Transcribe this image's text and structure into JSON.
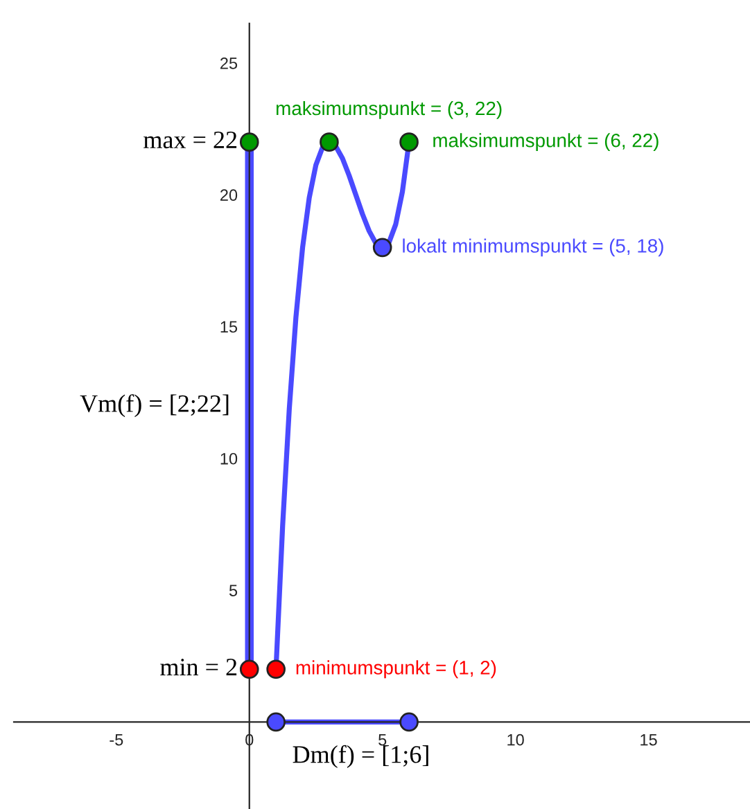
{
  "chart_data": {
    "type": "line",
    "x": [
      1,
      1.25,
      1.5,
      1.75,
      2,
      2.25,
      2.5,
      2.75,
      3,
      3.25,
      3.5,
      3.75,
      4,
      4.25,
      4.5,
      4.75,
      5,
      5.25,
      5.5,
      5.75,
      6
    ],
    "series": [
      {
        "color": "#4a4aff",
        "values": [
          2,
          7.45,
          11.88,
          15.36,
          18,
          19.89,
          21.13,
          21.8,
          22,
          21.83,
          21.38,
          20.73,
          20,
          19.27,
          18.63,
          18.17,
          18,
          18.2,
          18.88,
          20.11,
          22
        ]
      },
      {
        "color": "#4a4aff",
        "x": [
          0,
          0
        ],
        "values": [
          2,
          22
        ]
      },
      {
        "color": "#4a4aff",
        "x": [
          1,
          6
        ],
        "values": [
          0,
          0
        ]
      },
      {
        "type": "scatter",
        "marker": "circle",
        "color": "#ff0000",
        "x": [
          0,
          1
        ],
        "values": [
          2,
          2
        ]
      },
      {
        "type": "scatter",
        "marker": "circle",
        "color": "#009900",
        "x": [
          0,
          3,
          6
        ],
        "values": [
          22,
          22,
          22
        ]
      },
      {
        "type": "scatter",
        "marker": "circle",
        "color": "#4a4aff",
        "x": [
          1,
          5,
          6
        ],
        "values": [
          0,
          18,
          0
        ]
      }
    ],
    "xlim": [
      -8.85,
      18.8
    ],
    "ylim": [
      -3.3,
      26.5
    ],
    "xticks": [
      -5,
      0,
      5,
      10,
      15
    ],
    "yticks": [
      5,
      10,
      15,
      20,
      25
    ],
    "grid": false,
    "legend": false,
    "marker": "none",
    "line_style": "solid",
    "annotations": [
      {
        "text": "max = 22",
        "x": 0,
        "y": 22
      },
      {
        "text": "min = 2",
        "x": 0,
        "y": 2
      },
      {
        "text": "Vm(f) = [2;22]",
        "x": 0,
        "y": 12
      },
      {
        "text": "Dm(f) = [1;6]",
        "x": 4.2,
        "y": 0
      },
      {
        "text": "maksimumspunkt = (3, 22)",
        "x": 3,
        "y": 22
      },
      {
        "text": "maksimumspunkt = (6, 22)",
        "x": 6,
        "y": 22
      },
      {
        "text": "lokalt minimumspunkt = (5, 18)",
        "x": 5,
        "y": 18
      },
      {
        "text": "minimumspunkt = (1, 2)",
        "x": 1,
        "y": 2
      }
    ]
  }
}
